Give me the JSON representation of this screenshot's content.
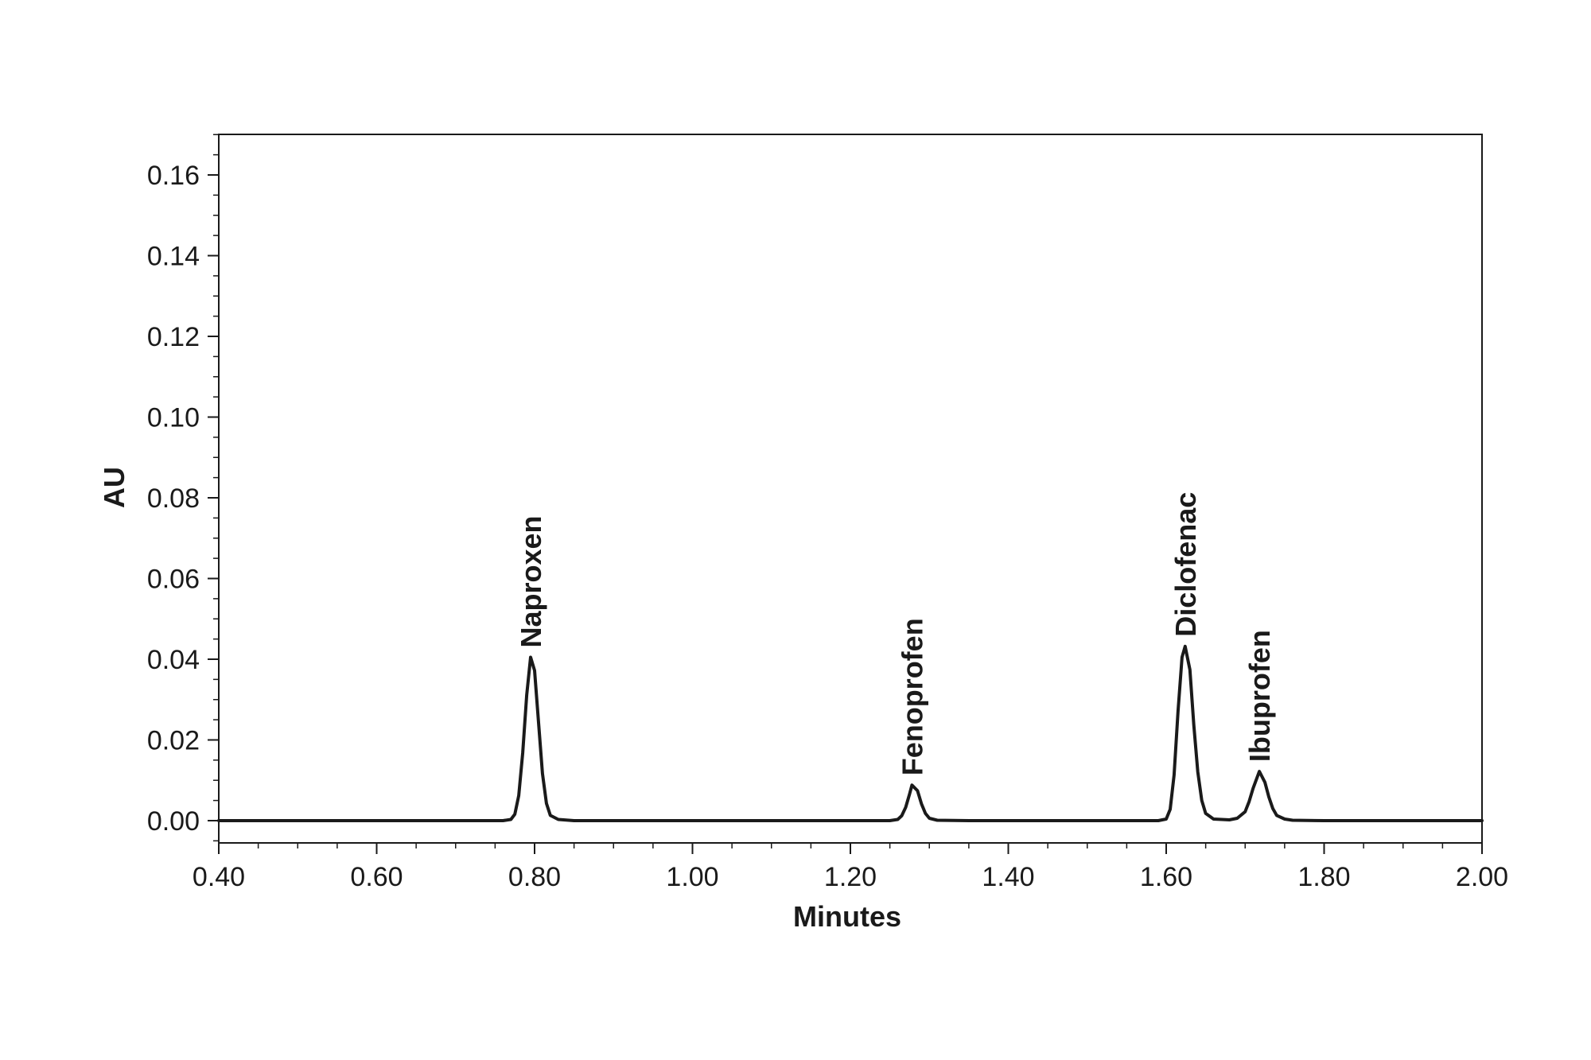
{
  "chart_data": {
    "type": "line",
    "title": "",
    "xlabel": "Minutes",
    "ylabel": "AU",
    "xlim": [
      0.4,
      2.0
    ],
    "ylim": [
      -0.005,
      0.17
    ],
    "x_ticks": [
      "0.40",
      "0.60",
      "0.80",
      "1.00",
      "1.20",
      "1.40",
      "1.60",
      "1.80",
      "2.00"
    ],
    "y_ticks": [
      "0.00",
      "0.02",
      "0.04",
      "0.06",
      "0.08",
      "0.10",
      "0.12",
      "0.14",
      "0.16"
    ],
    "grid": false,
    "line_color": "#1a1a1a",
    "peaks": [
      {
        "name": "Naproxen",
        "retention_time": 0.795,
        "height": 0.0405
      },
      {
        "name": "Fenoprofen",
        "retention_time": 1.278,
        "height": 0.0088
      },
      {
        "name": "Diclofenac",
        "retention_time": 1.624,
        "height": 0.0432
      },
      {
        "name": "Ibuprofen",
        "retention_time": 1.718,
        "height": 0.0122
      }
    ],
    "series": [
      {
        "x": [
          0.4,
          0.5,
          0.6,
          0.7,
          0.76,
          0.77,
          0.775,
          0.78,
          0.785,
          0.79,
          0.795,
          0.8,
          0.805,
          0.81,
          0.815,
          0.82,
          0.83,
          0.85,
          1.0,
          1.2,
          1.25,
          1.26,
          1.265,
          1.27,
          1.275,
          1.278,
          1.285,
          1.29,
          1.295,
          1.3,
          1.31,
          1.35,
          1.5,
          1.59,
          1.6,
          1.605,
          1.61,
          1.615,
          1.62,
          1.624,
          1.63,
          1.635,
          1.64,
          1.645,
          1.65,
          1.66,
          1.68,
          1.69,
          1.7,
          1.705,
          1.71,
          1.718,
          1.725,
          1.73,
          1.735,
          1.74,
          1.75,
          1.76,
          1.8,
          1.9,
          2.0
        ],
        "y": [
          0.0,
          0.0,
          0.0,
          0.0,
          0.0,
          0.0003,
          0.0016,
          0.0062,
          0.0168,
          0.0311,
          0.0405,
          0.0372,
          0.0243,
          0.0117,
          0.0043,
          0.0013,
          0.0003,
          0.0,
          0.0,
          0.0,
          0.0,
          0.0003,
          0.0012,
          0.0033,
          0.0066,
          0.0088,
          0.0074,
          0.0042,
          0.0018,
          0.0006,
          0.0001,
          0.0,
          0.0,
          0.0,
          0.0004,
          0.0028,
          0.0113,
          0.0272,
          0.0405,
          0.0432,
          0.0374,
          0.0237,
          0.0121,
          0.005,
          0.0018,
          0.0004,
          0.0002,
          0.0006,
          0.0022,
          0.0047,
          0.008,
          0.0122,
          0.0095,
          0.0059,
          0.003,
          0.0013,
          0.0004,
          0.0001,
          0.0,
          0.0,
          0.0
        ]
      }
    ]
  }
}
